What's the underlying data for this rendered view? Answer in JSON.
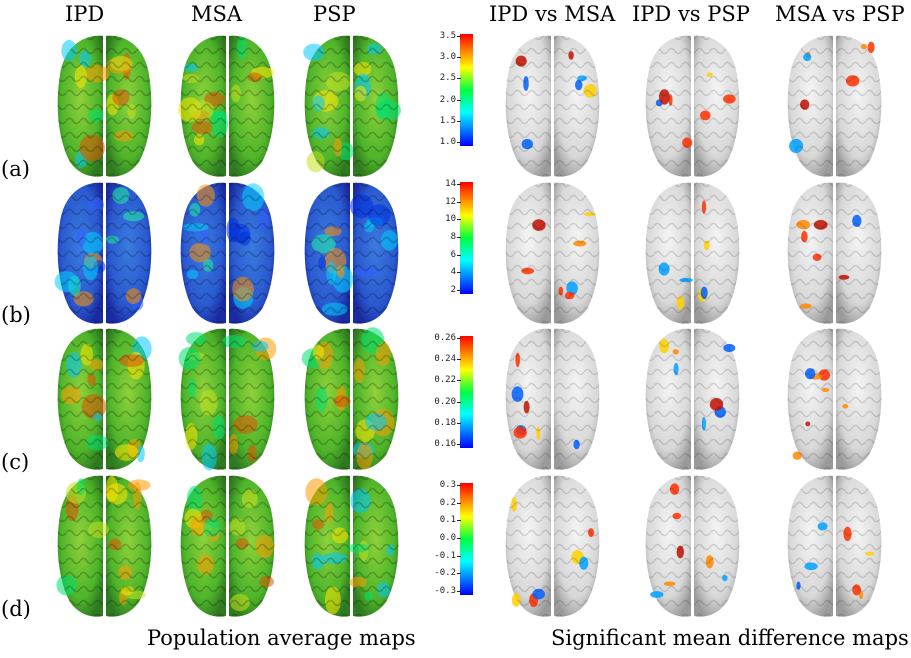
{
  "headers": {
    "group1": "IPD",
    "group2": "MSA",
    "group3": "PSP",
    "diff1": "IPD vs MSA",
    "diff2": "IPD vs PSP",
    "diff3": "MSA vs PSP"
  },
  "row_labels": [
    "(a)",
    "(b)",
    "(c)",
    "(d)"
  ],
  "footer": {
    "left": "Population average maps",
    "right": "Significant mean difference maps"
  },
  "colorbars": [
    {
      "ticks": [
        "3.5",
        "3.0",
        "2.5",
        "2.0",
        "1.5",
        "1.0"
      ]
    },
    {
      "ticks": [
        "14",
        "12",
        "10",
        "8",
        "6",
        "4",
        "2"
      ]
    },
    {
      "ticks": [
        "0.26",
        "0.24",
        "0.22",
        "0.20",
        "0.18",
        "0.16"
      ]
    },
    {
      "ticks": [
        "0.3",
        "0.2",
        "0.1",
        "0.0",
        "-0.1",
        "-0.2",
        "-0.3"
      ]
    }
  ],
  "colors": {
    "colormap_top": "#ff0000",
    "colormap_mid": "#00ff40",
    "colormap_bottom": "#0000ff",
    "cortex_gray": "#d9d9d9"
  }
}
